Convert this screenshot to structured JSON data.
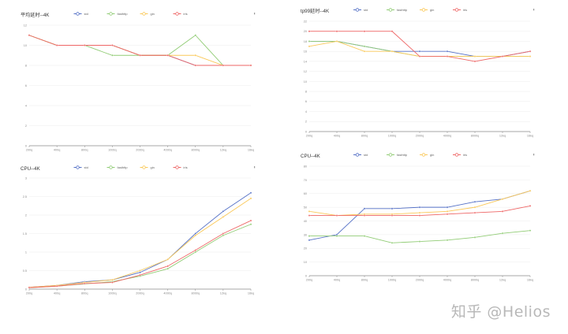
{
  "chart_data": [
    {
      "type": "line",
      "title": "平均延时--4K",
      "categories": [
        "200q",
        "400q",
        "800q",
        "1000q",
        "2000q",
        "4000q",
        "8000q",
        "12kq",
        "16kq"
      ],
      "yticks": [
        "0",
        "2",
        "4",
        "6",
        "8",
        "10",
        "12"
      ],
      "ylim": [
        0,
        12
      ],
      "grid": true,
      "legend_position": "top-center",
      "series": [
        {
          "name": "std",
          "color": "#5470c6",
          "values": [
            11,
            10,
            10,
            10,
            9,
            9,
            8,
            8,
            8
          ]
        },
        {
          "name": "fasthttp",
          "color": "#91cc75",
          "values": [
            11,
            10,
            10,
            9,
            9,
            9,
            11,
            8,
            8
          ]
        },
        {
          "name": "gin",
          "color": "#fac858",
          "values": [
            11,
            10,
            10,
            10,
            9,
            9,
            9,
            8,
            8
          ]
        },
        {
          "name": "iris",
          "color": "#ee6666",
          "values": [
            11,
            10,
            10,
            10,
            9,
            9,
            8,
            8,
            8
          ]
        }
      ]
    },
    {
      "type": "line",
      "title": "tp99延时--4K",
      "categories": [
        "200q",
        "400q",
        "800q",
        "1000q",
        "2000q",
        "4000q",
        "8000q",
        "12kq",
        "16kq"
      ],
      "yticks": [
        "0",
        "2",
        "4",
        "6",
        "8",
        "10",
        "12",
        "14",
        "16",
        "18",
        "20",
        "22"
      ],
      "ylim": [
        0,
        22
      ],
      "grid": true,
      "legend_position": "top-center",
      "series": [
        {
          "name": "std",
          "color": "#5470c6",
          "values": [
            18,
            18,
            17,
            16,
            16,
            16,
            15,
            15,
            16
          ]
        },
        {
          "name": "fasthttp",
          "color": "#91cc75",
          "values": [
            18,
            18,
            17,
            16,
            15,
            15,
            15,
            15,
            15
          ]
        },
        {
          "name": "gin",
          "color": "#fac858",
          "values": [
            17,
            18,
            16,
            16,
            15,
            15,
            15,
            15,
            15
          ]
        },
        {
          "name": "iris",
          "color": "#ee6666",
          "values": [
            20,
            20,
            20,
            20,
            15,
            15,
            14,
            15,
            16
          ]
        }
      ]
    },
    {
      "type": "line",
      "title": "CPU--4K",
      "categories": [
        "200q",
        "400q",
        "800q",
        "1000q",
        "2000q",
        "4000q",
        "8000q",
        "12kq",
        "16kq"
      ],
      "yticks": [
        "0",
        "0.5",
        "1",
        "1.5",
        "2",
        "2.5",
        "3"
      ],
      "ylim": [
        0,
        3
      ],
      "grid": true,
      "legend_position": "top-center",
      "series": [
        {
          "name": "std",
          "color": "#5470c6",
          "values": [
            0.05,
            0.1,
            0.2,
            0.25,
            0.45,
            0.8,
            1.5,
            2.1,
            2.6
          ]
        },
        {
          "name": "fasthttp",
          "color": "#91cc75",
          "values": [
            0.04,
            0.08,
            0.14,
            0.2,
            0.35,
            0.55,
            1.0,
            1.45,
            1.75
          ]
        },
        {
          "name": "gin",
          "color": "#fac858",
          "values": [
            0.05,
            0.1,
            0.18,
            0.25,
            0.5,
            0.8,
            1.45,
            1.95,
            2.45
          ]
        },
        {
          "name": "iris",
          "color": "#ee6666",
          "values": [
            0.04,
            0.08,
            0.15,
            0.18,
            0.38,
            0.62,
            1.05,
            1.5,
            1.85
          ]
        }
      ]
    },
    {
      "type": "line",
      "title": "CPU--4K",
      "categories": [
        "200q",
        "400q",
        "800q",
        "1000q",
        "2000q",
        "4000q",
        "8000q",
        "12kq",
        "16kq"
      ],
      "yticks": [
        "0",
        "10",
        "20",
        "30",
        "40",
        "50",
        "60",
        "70",
        "80"
      ],
      "ylim": [
        0,
        80
      ],
      "grid": true,
      "legend_position": "top-center",
      "series": [
        {
          "name": "std",
          "color": "#5470c6",
          "values": [
            26,
            30,
            49,
            49,
            50,
            50,
            54,
            56,
            62
          ]
        },
        {
          "name": "fasthttp",
          "color": "#91cc75",
          "values": [
            29,
            29,
            29,
            24,
            25,
            26,
            28,
            31,
            33
          ]
        },
        {
          "name": "gin",
          "color": "#fac858",
          "values": [
            47,
            44,
            45,
            45,
            46,
            47,
            50,
            56,
            62
          ]
        },
        {
          "name": "iris",
          "color": "#ee6666",
          "values": [
            44,
            44,
            44,
            44,
            44,
            45,
            46,
            47,
            51
          ]
        }
      ]
    }
  ],
  "watermark": "知乎 @Helios"
}
